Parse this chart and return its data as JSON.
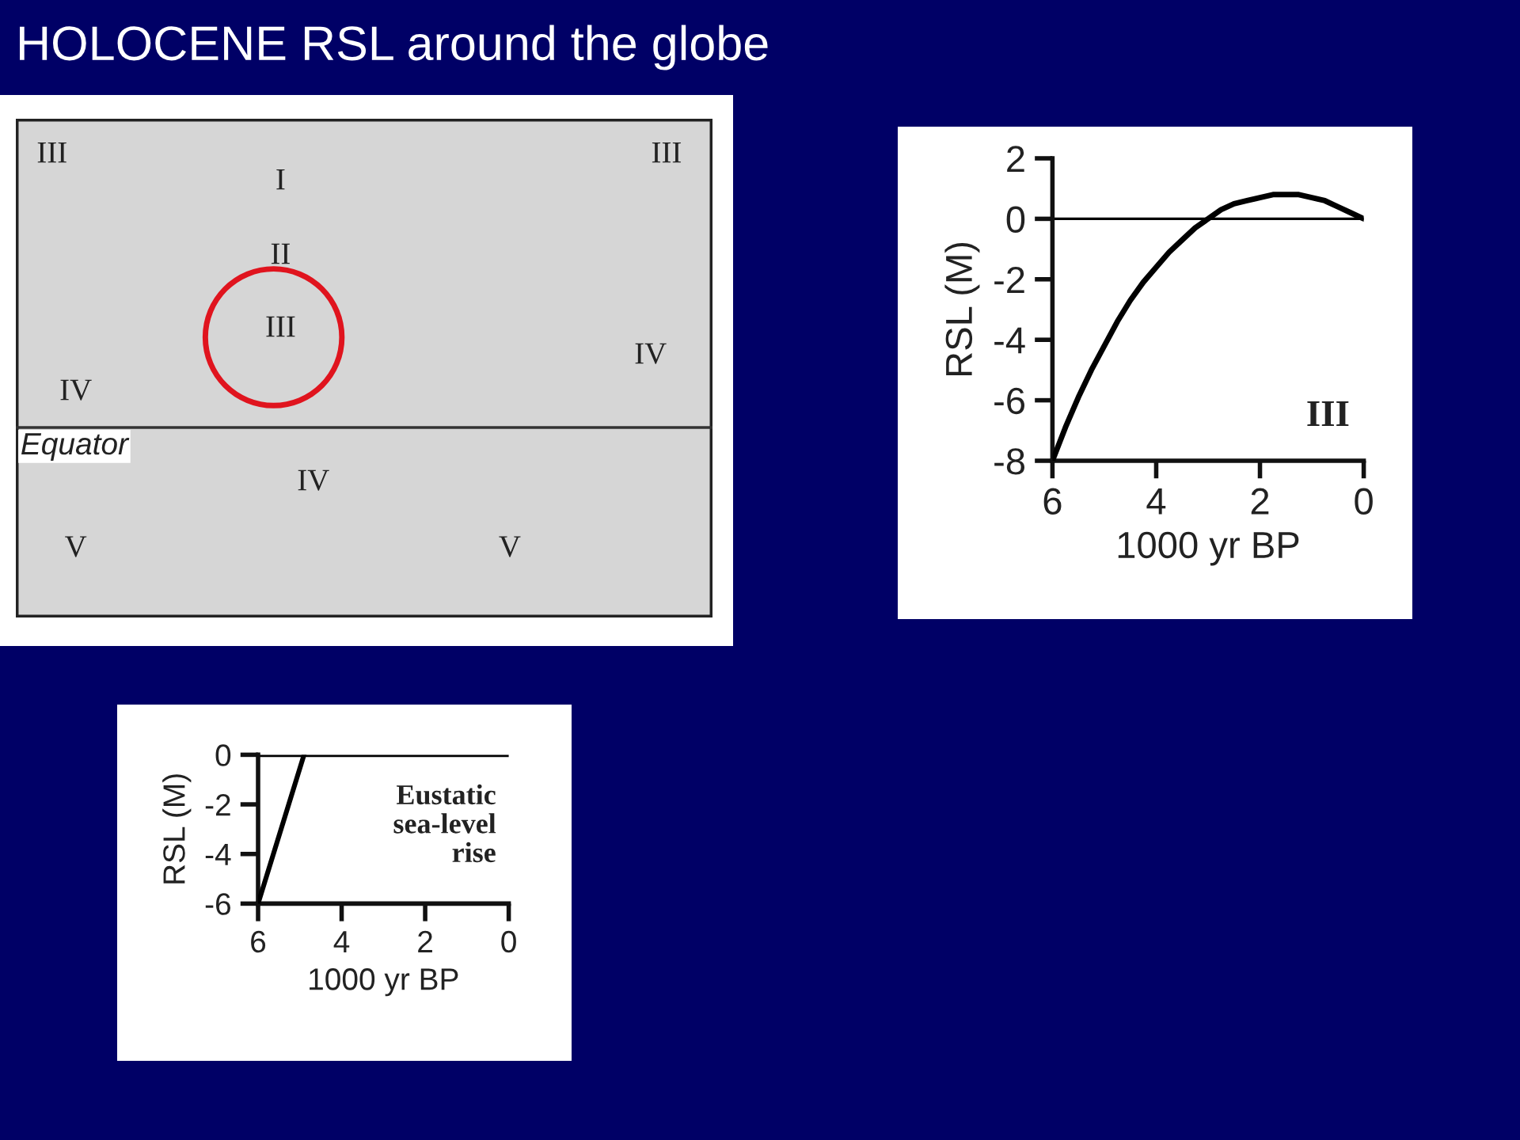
{
  "chart_data": [
    {
      "type": "other",
      "title": "HOLOCENE RSL around the globe",
      "annotations": [
        "III",
        "I",
        "III",
        "II",
        "III",
        "IV",
        "IV",
        "Equator",
        "IV",
        "V",
        "V"
      ]
    },
    {
      "type": "line",
      "x": [
        6,
        5.75,
        5.5,
        5.25,
        5,
        4.75,
        4.5,
        4.25,
        4,
        3.75,
        3.5,
        3.25,
        3,
        2.75,
        2.5,
        2.25,
        2,
        1.75,
        1.5,
        1.25,
        1,
        0.75,
        0.5,
        0.25,
        0
      ],
      "series": [
        {
          "color": "#000000",
          "values": [
            -8,
            -6.9,
            -5.9,
            -5.0,
            -4.2,
            -3.4,
            -2.7,
            -2.1,
            -1.6,
            -1.1,
            -0.7,
            -0.3,
            0,
            0.3,
            0.5,
            0.6,
            0.7,
            0.8,
            0.8,
            0.8,
            0.7,
            0.6,
            0.4,
            0.2,
            0
          ]
        }
      ],
      "xlabel": "1000 yr BP",
      "ylabel": "RSL (M)",
      "xlim": [
        6,
        0
      ],
      "ylim": [
        -8,
        2
      ],
      "xticks": [
        6,
        4,
        2,
        0
      ],
      "yticks": [
        -8,
        -6,
        -4,
        -2,
        0,
        2
      ],
      "ref_lines": [
        {
          "axis": "y",
          "value": 0,
          "color": "#000000"
        }
      ],
      "annotations": [
        "III"
      ],
      "marker": "none",
      "line_style": "solid"
    },
    {
      "type": "line",
      "x": [
        6,
        4.9
      ],
      "series": [
        {
          "color": "#000000",
          "values": [
            -6,
            0
          ]
        }
      ],
      "xlabel": "1000 yr BP",
      "ylabel": "RSL (M)",
      "xlim": [
        6,
        0
      ],
      "ylim": [
        -6,
        0
      ],
      "xticks": [
        6,
        4,
        2,
        0
      ],
      "yticks": [
        -6,
        -4,
        -2,
        0
      ],
      "ref_lines": [
        {
          "axis": "y",
          "value": 0,
          "color": "#000000"
        }
      ],
      "annotations": [
        "Eustatic\nsea-level\nrise"
      ],
      "marker": "none",
      "line_style": "solid"
    }
  ]
}
